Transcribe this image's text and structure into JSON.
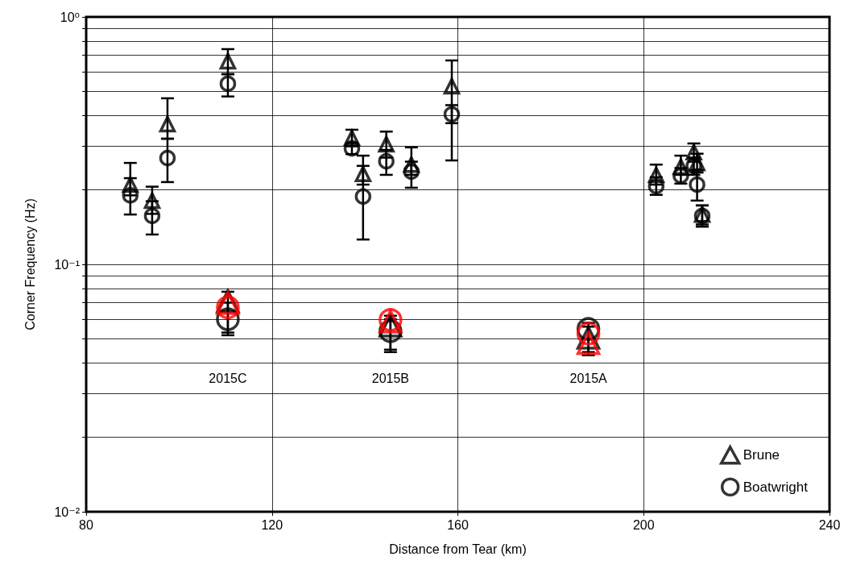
{
  "chart_data": {
    "type": "scatter",
    "xlabel": "Distance from Tear (km)",
    "ylabel": "Corner Frequency (Hz)",
    "xlim": [
      80,
      240
    ],
    "xticks": [
      80,
      120,
      160,
      200,
      240
    ],
    "ylim": [
      0.01,
      1
    ],
    "log": "y",
    "yticks": [
      {
        "value": 0.01,
        "label": "10⁻²"
      },
      {
        "value": 0.02,
        "label": null
      },
      {
        "value": 0.03,
        "label": null
      },
      {
        "value": 0.04,
        "label": null
      },
      {
        "value": 0.05,
        "label": null
      },
      {
        "value": 0.06,
        "label": null
      },
      {
        "value": 0.07,
        "label": null
      },
      {
        "value": 0.08,
        "label": null
      },
      {
        "value": 0.09,
        "label": null
      },
      {
        "value": 0.1,
        "label": "10⁻¹"
      },
      {
        "value": 0.2,
        "label": null
      },
      {
        "value": 0.3,
        "label": null
      },
      {
        "value": 0.4,
        "label": null
      },
      {
        "value": 0.5,
        "label": null
      },
      {
        "value": 0.6,
        "label": null
      },
      {
        "value": 0.7,
        "label": null
      },
      {
        "value": 0.8,
        "label": null
      },
      {
        "value": 0.9,
        "label": null
      },
      {
        "value": 1,
        "label": "10⁰"
      }
    ],
    "grid": true,
    "legend": "bottom right",
    "annotations": [
      "2015C",
      "2015B",
      "2015A"
    ],
    "series": [
      {
        "name": "Brune",
        "color": "#000000",
        "marker": "triangle",
        "x": [
          89.5,
          94.2,
          97.5,
          110.5,
          137.2,
          139.6,
          144.6,
          150.0,
          158.7,
          202.7,
          208.0,
          210.8,
          211.5,
          212.6
        ],
        "values": [
          0.21,
          0.181,
          0.369,
          0.662,
          0.324,
          0.232,
          0.306,
          0.253,
          0.525,
          0.23,
          0.248,
          0.284,
          0.257,
          0.159
        ],
        "errors": [
          [
            0.19,
            0.257
          ],
          [
            0.16,
            0.206
          ],
          [
            0.322,
            0.469
          ],
          [
            0.587,
            0.741
          ],
          [
            0.3,
            0.35
          ],
          [
            0.21,
            0.275
          ],
          [
            0.27,
            0.344
          ],
          [
            0.23,
            0.297
          ],
          [
            0.372,
            0.667
          ],
          [
            0.21,
            0.253
          ],
          [
            0.23,
            0.275
          ],
          [
            0.26,
            0.308
          ],
          [
            0.24,
            0.28
          ],
          [
            0.145,
            0.173
          ]
        ]
      },
      {
        "name": "Boatwright",
        "color": "#000000",
        "marker": "circle",
        "x": [
          89.5,
          94.2,
          97.5,
          110.5,
          137.2,
          139.6,
          144.6,
          150.0,
          158.7,
          202.7,
          208.0,
          210.8,
          211.5,
          212.6
        ],
        "values": [
          0.19,
          0.157,
          0.269,
          0.537,
          0.294,
          0.188,
          0.261,
          0.237,
          0.404,
          0.207,
          0.228,
          0.25,
          0.21,
          0.157
        ],
        "errors": [
          [
            0.159,
            0.223
          ],
          [
            0.132,
            0.18
          ],
          [
            0.215,
            0.322
          ],
          [
            0.477,
            0.587
          ],
          [
            0.279,
            0.31
          ],
          [
            0.126,
            0.25
          ],
          [
            0.23,
            0.29
          ],
          [
            0.204,
            0.26
          ],
          [
            0.263,
            0.44
          ],
          [
            0.191,
            0.225
          ],
          [
            0.212,
            0.245
          ],
          [
            0.23,
            0.27
          ],
          [
            0.181,
            0.235
          ],
          [
            0.142,
            0.173
          ]
        ]
      },
      {
        "color": "#000000",
        "marker": "triangle",
        "x": [
          110.5,
          145.5,
          188.1
        ],
        "values": [
          0.071,
          0.0566,
          0.0505
        ],
        "errors": [
          [
            0.053,
            0.0775
          ],
          [
            0.0452,
            0.062
          ],
          [
            0.0442,
            0.056
          ]
        ]
      },
      {
        "color": "#000000",
        "marker": "circle",
        "x": [
          110.5,
          145.5,
          188.1
        ],
        "values": [
          0.06,
          0.0537,
          0.0548
        ],
        "errors": [
          [
            0.0517,
            0.07
          ],
          [
            0.0442,
            0.06
          ],
          [
            0.0429,
            0.058
          ]
        ]
      },
      {
        "color": "#ff0000",
        "marker": "triangle",
        "x": [
          110.5,
          145.5,
          188.1
        ],
        "values": [
          0.0698,
          0.0587,
          0.048
        ]
      },
      {
        "color": "#ff0000",
        "marker": "circle",
        "x": [
          110.5,
          145.5,
          188.1
        ],
        "values": [
          0.067,
          0.0596,
          0.0525
        ]
      }
    ]
  }
}
